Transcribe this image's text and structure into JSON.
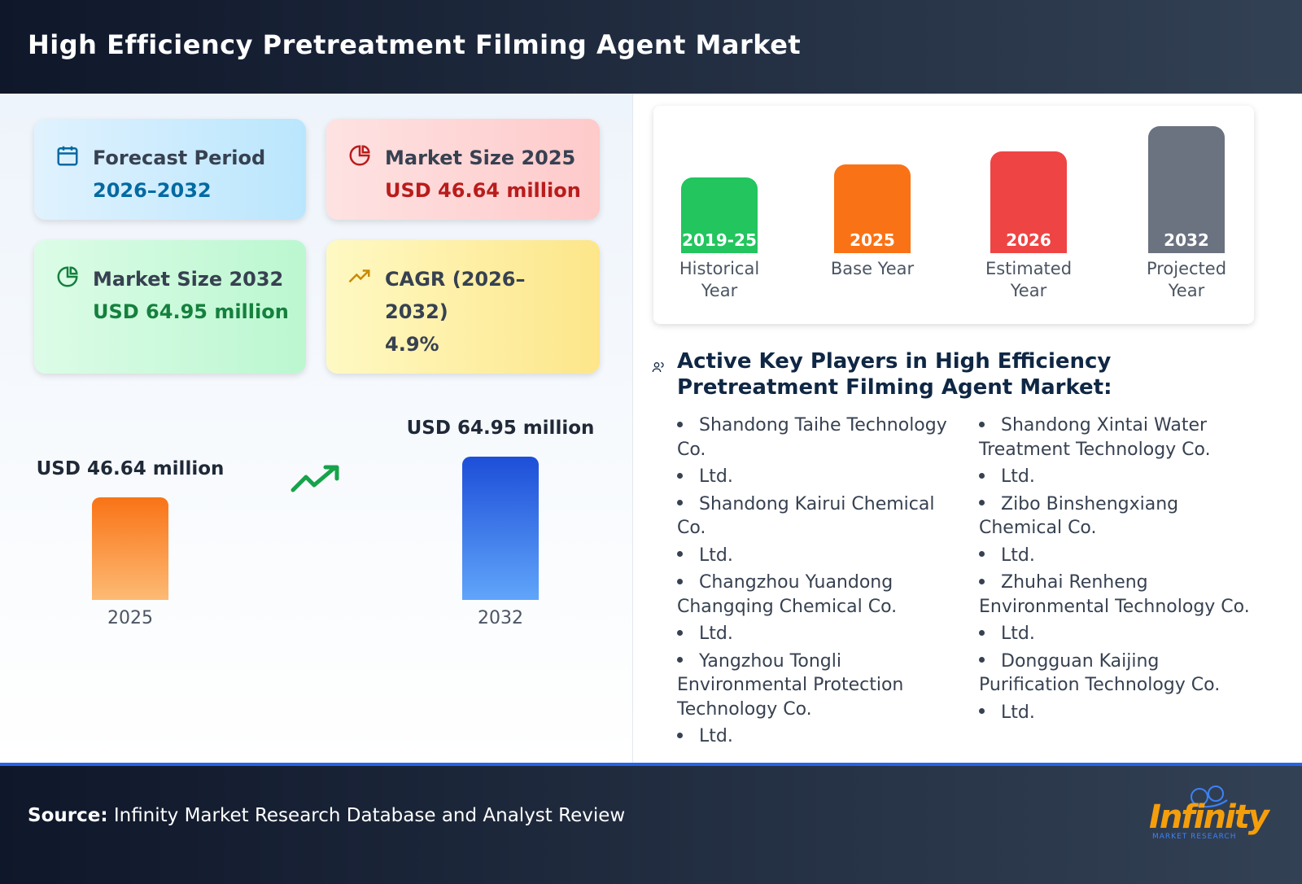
{
  "header": {
    "title": "High Efficiency Pretreatment Filming Agent Market"
  },
  "cards": [
    {
      "label": "Forecast Period",
      "value": "2026–2032"
    },
    {
      "label": "Market Size 2025",
      "value": "USD 46.64 million"
    },
    {
      "label": "Market Size 2032",
      "value": "USD 64.95 million"
    },
    {
      "label": "CAGR (2026–2032)",
      "value": "4.9%"
    }
  ],
  "comparison": {
    "bars": [
      {
        "year": "2025",
        "value": 46.64,
        "label": "USD 46.64 million"
      },
      {
        "year": "2032",
        "value": 64.95,
        "label": "USD 64.95 million"
      }
    ]
  },
  "timeline": [
    {
      "period": "2019-25",
      "label": "Historical Year"
    },
    {
      "period": "2025",
      "label": "Base Year"
    },
    {
      "period": "2026",
      "label": "Estimated Year"
    },
    {
      "period": "2032",
      "label": "Projected Year"
    }
  ],
  "players": {
    "title": "Active Key Players in High Efficiency Pretreatment Filming Agent Market:",
    "columns": [
      [
        "Shandong Taihe Technology Co.",
        "Ltd.",
        "Shandong Kairui Chemical Co.",
        "Ltd.",
        "Changzhou Yuandong Changqing Chemical Co.",
        "Ltd.",
        "Yangzhou Tongli Environmental Protection Technology Co.",
        "Ltd."
      ],
      [
        "Shandong Xintai Water Treatment Technology Co.",
        "Ltd.",
        "Zibo Binshengxiang Chemical Co.",
        "Ltd.",
        "Zhuhai Renheng Environmental Technology Co.",
        "Ltd.",
        "Dongguan Kaijing Purification Technology Co.",
        "Ltd."
      ]
    ]
  },
  "footer": {
    "source_label": "Source:",
    "source": "Infinity Market Research Database and Analyst Review",
    "logo": "Infinity",
    "logo_sub": "MARKET RESEARCH"
  }
}
